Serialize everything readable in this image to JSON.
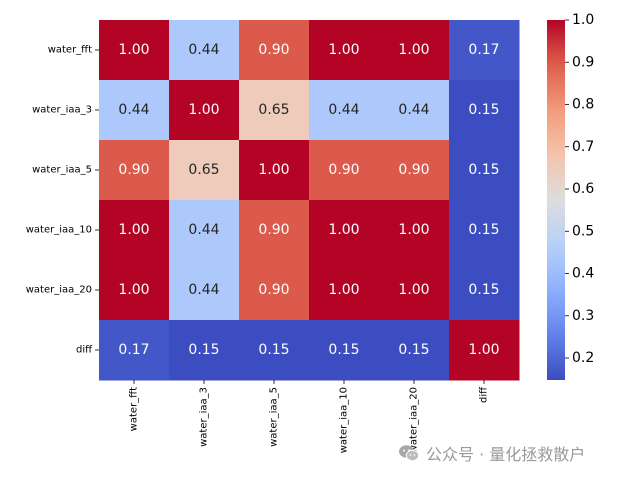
{
  "chart_data": {
    "type": "heatmap",
    "title": "",
    "xlabel": "",
    "ylabel": "",
    "row_labels": [
      "water_fft",
      "water_iaa_3",
      "water_iaa_5",
      "water_iaa_10",
      "water_iaa_20",
      "diff"
    ],
    "col_labels": [
      "water_fft",
      "water_iaa_3",
      "water_iaa_5",
      "water_iaa_10",
      "water_iaa_20",
      "diff"
    ],
    "values": [
      [
        1.0,
        0.44,
        0.9,
        1.0,
        1.0,
        0.17
      ],
      [
        0.44,
        1.0,
        0.65,
        0.44,
        0.44,
        0.15
      ],
      [
        0.9,
        0.65,
        1.0,
        0.9,
        0.9,
        0.15
      ],
      [
        1.0,
        0.44,
        0.9,
        1.0,
        1.0,
        0.15
      ],
      [
        1.0,
        0.44,
        0.9,
        1.0,
        1.0,
        0.15
      ],
      [
        0.17,
        0.15,
        0.15,
        0.15,
        0.15,
        1.0
      ]
    ],
    "annotation_format": "0.00",
    "colormap": "coolwarm",
    "vmin": 0.148,
    "vmax": 1.0,
    "colorbar_ticks": [
      0.2,
      0.3,
      0.4,
      0.5,
      0.6,
      0.7,
      0.8,
      0.9,
      1.0
    ],
    "colorbar_tick_labels": [
      "0.2",
      "0.3",
      "0.4",
      "0.5",
      "0.6",
      "0.7",
      "0.8",
      "0.9",
      "1.0"
    ]
  },
  "watermark": {
    "text": "公众号 · 量化拯救散户",
    "icon": "wechat-icon"
  }
}
